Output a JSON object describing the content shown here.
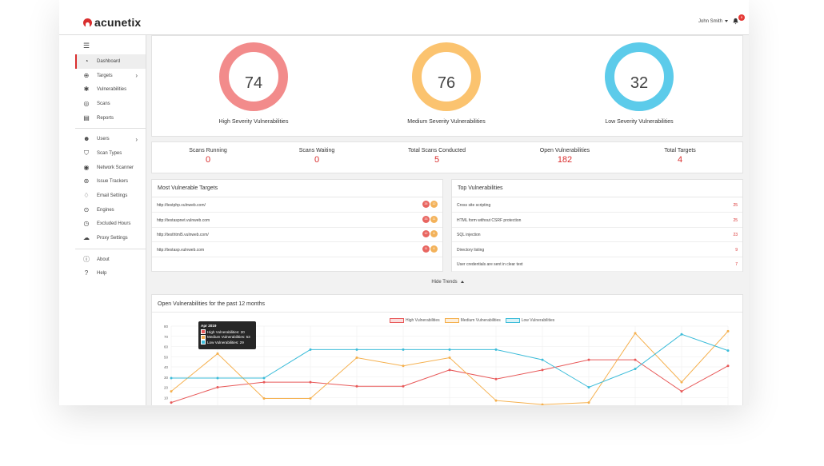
{
  "app": {
    "brand": "acunetix",
    "user": "John Smith",
    "notifications": "5"
  },
  "sidebar": {
    "items": [
      {
        "label": "Dashboard",
        "icon": "dashboard-icon",
        "glyph": "◔",
        "active": true,
        "chevron": false
      },
      {
        "label": "Targets",
        "icon": "target-icon",
        "glyph": "⊕",
        "active": false,
        "chevron": true
      },
      {
        "label": "Vulnerabilities",
        "icon": "bug-icon",
        "glyph": "✱",
        "active": false,
        "chevron": false
      },
      {
        "label": "Scans",
        "icon": "radar-icon",
        "glyph": "◎",
        "active": false,
        "chevron": false
      },
      {
        "label": "Reports",
        "icon": "report-icon",
        "glyph": "▤",
        "active": false,
        "chevron": false
      }
    ],
    "items2": [
      {
        "label": "Users",
        "icon": "users-icon",
        "glyph": "☻",
        "chevron": true
      },
      {
        "label": "Scan Types",
        "icon": "shield-icon",
        "glyph": "⛉",
        "chevron": false
      },
      {
        "label": "Network Scanner",
        "icon": "network-scanner-icon",
        "glyph": "◉",
        "chevron": false
      },
      {
        "label": "Issue Trackers",
        "icon": "issue-tracker-icon",
        "glyph": "⊛",
        "chevron": false
      },
      {
        "label": "Email Settings",
        "icon": "email-bell-icon",
        "glyph": "♢",
        "chevron": false
      },
      {
        "label": "Engines",
        "icon": "engine-icon",
        "glyph": "⊙",
        "chevron": false
      },
      {
        "label": "Excluded Hours",
        "icon": "clock-icon",
        "glyph": "◷",
        "chevron": false
      },
      {
        "label": "Proxy Settings",
        "icon": "cloud-icon",
        "glyph": "☁",
        "chevron": false
      }
    ],
    "items3": [
      {
        "label": "About",
        "icon": "info-icon",
        "glyph": "ⓘ"
      },
      {
        "label": "Help",
        "icon": "help-icon",
        "glyph": "?"
      }
    ]
  },
  "severity": [
    {
      "value": "74",
      "label": "High Severity Vulnerabilities",
      "color": "#f28b8b"
    },
    {
      "value": "76",
      "label": "Medium Severity Vulnerabilities",
      "color": "#fbc36f"
    },
    {
      "value": "32",
      "label": "Low Severity Vulnerabilities",
      "color": "#5ccbea"
    }
  ],
  "stats": [
    {
      "label": "Scans Running",
      "value": "0"
    },
    {
      "label": "Scans Waiting",
      "value": "0"
    },
    {
      "label": "Total Scans Conducted",
      "value": "5"
    },
    {
      "label": "Open Vulnerabilities",
      "value": "182"
    },
    {
      "label": "Total Targets",
      "value": "4"
    }
  ],
  "targets": {
    "title": "Most Vulnerable Targets",
    "rows": [
      {
        "url": "http://testphp.vulnweb.com/",
        "high": "26",
        "medium": "12"
      },
      {
        "url": "http://testaspnet.vulnweb.com",
        "high": "33",
        "medium": "11"
      },
      {
        "url": "http://testhtml5.vulnweb.com/",
        "high": "12",
        "medium": "8"
      },
      {
        "url": "http://testasp.vulnweb.com",
        "high": "11",
        "medium": "6"
      }
    ]
  },
  "top_vulns": {
    "title": "Top Vulnerabilities",
    "rows": [
      {
        "name": "Cross site scripting",
        "count": "25"
      },
      {
        "name": "HTML form without CSRF protection",
        "count": "25"
      },
      {
        "name": "SQL injection",
        "count": "23"
      },
      {
        "name": "Directory listing",
        "count": "9"
      },
      {
        "name": "User credentials are sent in clear text",
        "count": "7"
      }
    ]
  },
  "trends_toggle": "Hide Trends",
  "chart_data": {
    "type": "line",
    "title": "Open Vulnerabilities for the past 12 months",
    "ylim": [
      0,
      80
    ],
    "yticks": [
      "80",
      "70",
      "60",
      "50",
      "40",
      "30",
      "20",
      "10"
    ],
    "series": [
      {
        "name": "High Vulnerabilities",
        "color": "#e85a5a",
        "values": [
          5,
          20,
          25,
          25,
          21,
          21,
          37,
          28,
          37,
          47,
          47,
          16,
          41
        ]
      },
      {
        "name": "Medium Vulnerabilities",
        "color": "#f5b04e",
        "values": [
          16,
          53,
          9,
          9,
          49,
          41,
          49,
          7,
          3,
          5,
          73,
          25,
          75
        ]
      },
      {
        "name": "Low Vulnerabilities",
        "color": "#3cbcd9",
        "values": [
          29,
          29,
          29,
          57,
          57,
          57,
          57,
          57,
          47,
          20,
          38,
          72,
          56
        ]
      }
    ],
    "tooltip": {
      "title": "Apr 2019",
      "lines": [
        "High Vulnerabilities: 20",
        "Medium Vulnerabilities: 53",
        "Low Vulnerabilities: 29"
      ],
      "colors": [
        "#e85a5a",
        "#f5b04e",
        "#3cbcd9"
      ]
    }
  }
}
